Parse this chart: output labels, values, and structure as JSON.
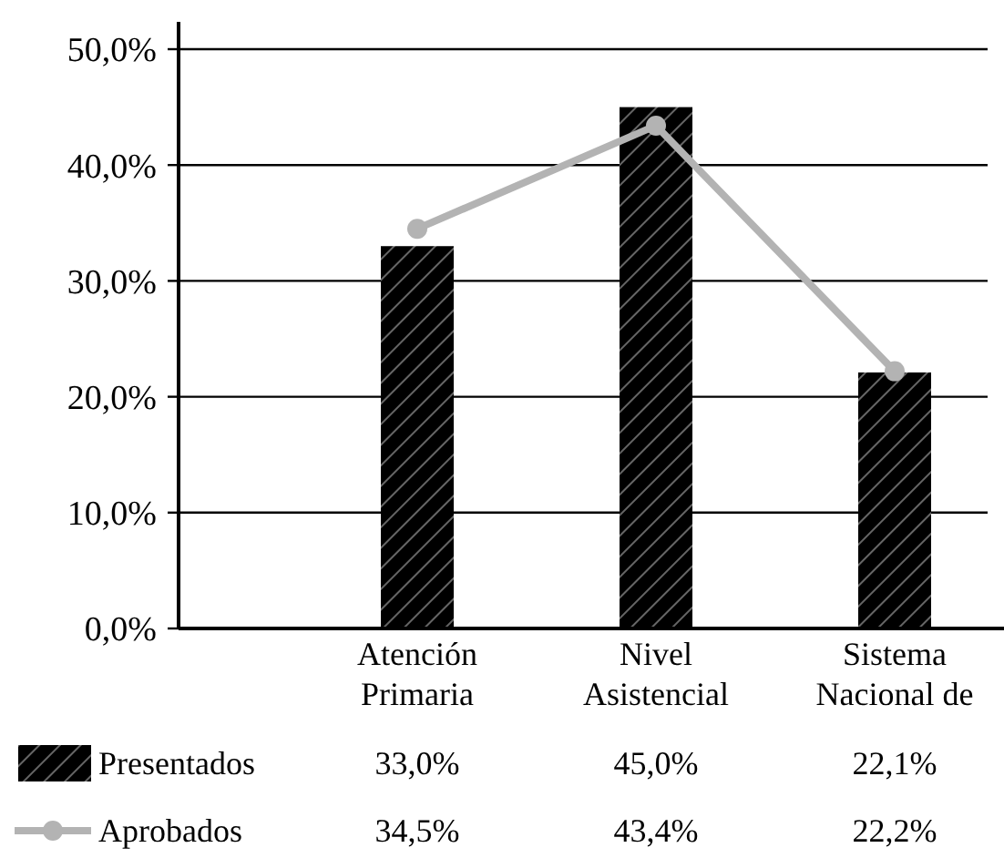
{
  "chart_data": {
    "type": "bar",
    "categories": [
      "Atención Primaria",
      "Nivel Asistencial",
      "Sistema Nacional de"
    ],
    "series": [
      {
        "name": "Presentados",
        "color": "#000000",
        "values": [
          33.0,
          45.0,
          22.1
        ],
        "value_labels": [
          "33,0%",
          "45,0%",
          "22,1%"
        ]
      },
      {
        "name": "Aprobados",
        "type": "line",
        "color": "#b3b3b3",
        "marker": "circle",
        "values": [
          34.5,
          43.4,
          22.2
        ],
        "value_labels": [
          "34,5%",
          "43,4%",
          "22,2%"
        ]
      }
    ],
    "ylim": [
      0,
      50
    ],
    "yticks": [
      {
        "value": 0,
        "label": "0,0%"
      },
      {
        "value": 10,
        "label": "10,0%"
      },
      {
        "value": 20,
        "label": "20,0%"
      },
      {
        "value": 30,
        "label": "30,0%"
      },
      {
        "value": 40,
        "label": "40,0%"
      },
      {
        "value": 50,
        "label": "50,0%"
      }
    ],
    "grid": "y",
    "legend": "bottom",
    "data_labels": true
  }
}
